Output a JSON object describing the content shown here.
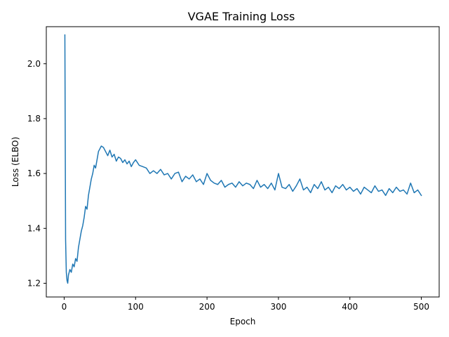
{
  "chart_data": {
    "type": "line",
    "title": "VGAE Training Loss",
    "xlabel": "Epoch",
    "ylabel": "Loss (ELBO)",
    "xlim": [
      -25,
      525
    ],
    "ylim": [
      1.15,
      2.135
    ],
    "xticks": [
      0,
      100,
      200,
      300,
      400,
      500
    ],
    "yticks": [
      1.2,
      1.4,
      1.6,
      1.8,
      2.0
    ],
    "ytick_labels": [
      "1.2",
      "1.4",
      "1.6",
      "1.8",
      "2.0"
    ],
    "grid": false,
    "legend": "none",
    "series": [
      {
        "color": "#1f77b4",
        "x": [
          1,
          2,
          3,
          4,
          5,
          6,
          8,
          10,
          12,
          14,
          16,
          18,
          20,
          22,
          24,
          26,
          28,
          30,
          32,
          34,
          36,
          38,
          40,
          42,
          44,
          46,
          48,
          50,
          52,
          55,
          58,
          61,
          64,
          67,
          70,
          73,
          76,
          79,
          82,
          85,
          88,
          91,
          94,
          97,
          100,
          105,
          110,
          115,
          120,
          125,
          130,
          135,
          140,
          145,
          150,
          155,
          160,
          165,
          170,
          175,
          180,
          185,
          190,
          195,
          200,
          205,
          210,
          215,
          220,
          225,
          230,
          235,
          240,
          245,
          250,
          255,
          260,
          265,
          270,
          275,
          280,
          285,
          290,
          295,
          300,
          305,
          310,
          315,
          320,
          325,
          330,
          335,
          340,
          345,
          350,
          355,
          360,
          365,
          370,
          375,
          380,
          385,
          390,
          395,
          400,
          405,
          410,
          415,
          420,
          425,
          430,
          435,
          440,
          445,
          450,
          455,
          460,
          465,
          470,
          475,
          480,
          485,
          490,
          495,
          500
        ],
        "y": [
          2.105,
          1.36,
          1.24,
          1.21,
          1.2,
          1.23,
          1.25,
          1.24,
          1.27,
          1.26,
          1.29,
          1.28,
          1.33,
          1.36,
          1.39,
          1.41,
          1.44,
          1.48,
          1.47,
          1.52,
          1.55,
          1.58,
          1.6,
          1.63,
          1.62,
          1.65,
          1.68,
          1.69,
          1.7,
          1.695,
          1.68,
          1.665,
          1.685,
          1.66,
          1.67,
          1.645,
          1.66,
          1.655,
          1.64,
          1.65,
          1.635,
          1.645,
          1.625,
          1.64,
          1.65,
          1.63,
          1.625,
          1.62,
          1.6,
          1.61,
          1.6,
          1.615,
          1.595,
          1.6,
          1.58,
          1.6,
          1.605,
          1.57,
          1.59,
          1.58,
          1.595,
          1.57,
          1.58,
          1.56,
          1.6,
          1.575,
          1.565,
          1.56,
          1.575,
          1.55,
          1.56,
          1.565,
          1.55,
          1.57,
          1.555,
          1.565,
          1.56,
          1.545,
          1.575,
          1.55,
          1.56,
          1.545,
          1.565,
          1.54,
          1.6,
          1.55,
          1.545,
          1.56,
          1.535,
          1.555,
          1.58,
          1.54,
          1.55,
          1.53,
          1.56,
          1.545,
          1.57,
          1.54,
          1.55,
          1.53,
          1.555,
          1.545,
          1.56,
          1.54,
          1.55,
          1.535,
          1.545,
          1.525,
          1.55,
          1.54,
          1.53,
          1.555,
          1.535,
          1.54,
          1.52,
          1.545,
          1.53,
          1.55,
          1.535,
          1.54,
          1.525,
          1.565,
          1.53,
          1.54,
          1.52
        ]
      }
    ]
  }
}
